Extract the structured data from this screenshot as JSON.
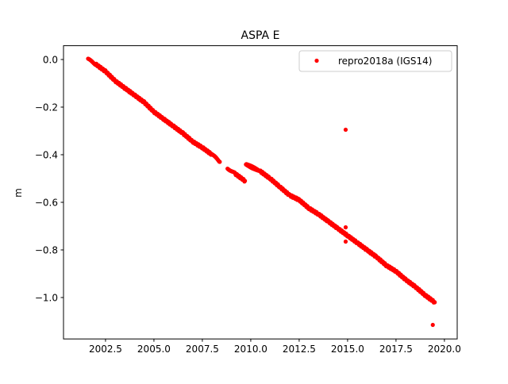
{
  "chart_data": {
    "type": "scatter",
    "title": "ASPA E",
    "xlabel": "",
    "ylabel": "m",
    "xlim": [
      2000.33,
      2020.66
    ],
    "ylim": [
      -1.174,
      0.058
    ],
    "xticks": [
      2002.5,
      2005.0,
      2007.5,
      2010.0,
      2012.5,
      2015.0,
      2017.5,
      2020.0
    ],
    "xtick_labels": [
      "2002.5",
      "2005.0",
      "2007.5",
      "2010.0",
      "2012.5",
      "2015.0",
      "2017.5",
      "2020.0"
    ],
    "yticks": [
      0.0,
      -0.2,
      -0.4,
      -0.6,
      -0.8,
      -1.0
    ],
    "ytick_labels": [
      "0.0",
      "−0.2",
      "−0.4",
      "−0.6",
      "−0.8",
      "−1.0"
    ],
    "grid": false,
    "legend_position": "top-right",
    "series": [
      {
        "name": "repro2018a (IGS14)",
        "color": "#ff0000",
        "marker": "dot",
        "segments": [
          [
            [
              2001.6,
              0.0
            ],
            [
              2002.0,
              -0.02
            ],
            [
              2002.5,
              -0.05
            ],
            [
              2003.0,
              -0.09
            ],
            [
              2003.5,
              -0.12
            ],
            [
              2004.0,
              -0.15
            ],
            [
              2004.5,
              -0.18
            ],
            [
              2005.0,
              -0.22
            ],
            [
              2005.5,
              -0.25
            ],
            [
              2006.0,
              -0.28
            ],
            [
              2006.5,
              -0.31
            ],
            [
              2007.0,
              -0.345
            ],
            [
              2007.5,
              -0.37
            ],
            [
              2008.0,
              -0.4
            ],
            [
              2008.4,
              -0.43
            ]
          ],
          [
            [
              2008.8,
              -0.455
            ],
            [
              2009.2,
              -0.48
            ],
            [
              2009.7,
              -0.51
            ]
          ],
          [
            [
              2009.75,
              -0.44
            ],
            [
              2010.5,
              -0.47
            ],
            [
              2011.0,
              -0.5
            ],
            [
              2011.5,
              -0.535
            ],
            [
              2012.0,
              -0.57
            ],
            [
              2012.5,
              -0.59
            ],
            [
              2013.0,
              -0.625
            ],
            [
              2013.5,
              -0.65
            ],
            [
              2014.0,
              -0.68
            ],
            [
              2014.5,
              -0.71
            ],
            [
              2015.0,
              -0.74
            ],
            [
              2015.5,
              -0.77
            ],
            [
              2016.0,
              -0.8
            ],
            [
              2016.5,
              -0.83
            ],
            [
              2017.0,
              -0.865
            ],
            [
              2017.5,
              -0.89
            ],
            [
              2018.0,
              -0.925
            ],
            [
              2018.5,
              -0.955
            ],
            [
              2019.0,
              -0.99
            ],
            [
              2019.5,
              -1.02
            ]
          ]
        ],
        "outliers": [
          [
            2014.9,
            -0.295
          ],
          [
            2014.9,
            -0.705
          ],
          [
            2014.9,
            -0.765
          ],
          [
            2019.4,
            -1.115
          ]
        ]
      }
    ]
  }
}
